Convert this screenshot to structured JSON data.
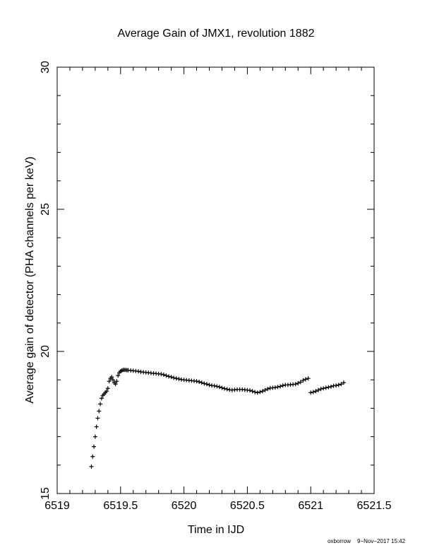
{
  "chart_data": {
    "type": "scatter",
    "title": "Average Gain of JMX1, revolution 1882",
    "xlabel": "Time in IJD",
    "ylabel": "Average gain of detector (PHA channels per keV)",
    "xlim": [
      6519,
      6521.5
    ],
    "ylim": [
      15,
      30
    ],
    "xticks": [
      6519,
      6519.5,
      6520,
      6520.5,
      6521,
      6521.5
    ],
    "xtick_labels": [
      "6519",
      "6519.5",
      "6520",
      "6520.5",
      "6521",
      "6521.5"
    ],
    "yticks": [
      15,
      20,
      25,
      30
    ],
    "ytick_labels": [
      "15",
      "20",
      "25",
      "30"
    ],
    "marker": "+",
    "grid": false,
    "series": [
      {
        "x": [
          6519.27,
          6519.28,
          6519.29,
          6519.3,
          6519.31,
          6519.32,
          6519.33,
          6519.34,
          6519.35,
          6519.36,
          6519.37,
          6519.38,
          6519.39,
          6519.4,
          6519.41,
          6519.42,
          6519.43,
          6519.44,
          6519.45,
          6519.46,
          6519.47,
          6519.48,
          6519.49,
          6519.5,
          6519.51,
          6519.52,
          6519.53,
          6519.54,
          6519.55,
          6519.56,
          6519.58,
          6519.6,
          6519.62,
          6519.64,
          6519.66,
          6519.68,
          6519.7,
          6519.72,
          6519.74,
          6519.76,
          6519.78,
          6519.8,
          6519.82,
          6519.84,
          6519.86,
          6519.88,
          6519.9,
          6519.92,
          6519.94,
          6519.96,
          6519.98,
          6520.0,
          6520.02,
          6520.04,
          6520.06,
          6520.08,
          6520.1,
          6520.12,
          6520.14,
          6520.16,
          6520.18,
          6520.2,
          6520.22,
          6520.24,
          6520.26,
          6520.28,
          6520.3,
          6520.32,
          6520.34,
          6520.36,
          6520.38,
          6520.4,
          6520.42,
          6520.44,
          6520.46,
          6520.48,
          6520.5,
          6520.52,
          6520.54,
          6520.56,
          6520.58,
          6520.6,
          6520.62,
          6520.64,
          6520.66,
          6520.68,
          6520.7,
          6520.72,
          6520.74,
          6520.76,
          6520.78,
          6520.8,
          6520.82,
          6520.84,
          6520.86,
          6520.88,
          6520.9,
          6520.92,
          6520.94,
          6520.96,
          6520.98,
          6521.0,
          6521.02,
          6521.04,
          6521.06,
          6521.08,
          6521.1,
          6521.12,
          6521.14,
          6521.16,
          6521.18,
          6521.2,
          6521.22,
          6521.24,
          6521.26
        ],
        "y": [
          15.95,
          16.3,
          16.65,
          17.0,
          17.35,
          17.65,
          17.9,
          18.15,
          18.35,
          18.45,
          18.5,
          18.55,
          18.6,
          18.7,
          18.95,
          19.05,
          19.1,
          19.0,
          18.9,
          18.85,
          18.95,
          19.15,
          19.25,
          19.3,
          19.33,
          19.35,
          19.35,
          19.35,
          19.34,
          19.34,
          19.33,
          19.32,
          19.31,
          19.3,
          19.28,
          19.27,
          19.26,
          19.25,
          19.24,
          19.23,
          19.22,
          19.21,
          19.2,
          19.18,
          19.15,
          19.12,
          19.1,
          19.07,
          19.05,
          19.03,
          19.01,
          19.0,
          18.99,
          18.98,
          18.97,
          18.96,
          18.95,
          18.93,
          18.9,
          18.87,
          18.85,
          18.82,
          18.8,
          18.79,
          18.77,
          18.75,
          18.72,
          18.69,
          18.67,
          18.65,
          18.64,
          18.65,
          18.66,
          18.66,
          18.66,
          18.65,
          18.64,
          18.63,
          18.6,
          18.57,
          18.55,
          18.57,
          18.6,
          18.64,
          18.68,
          18.71,
          18.72,
          18.73,
          18.75,
          18.77,
          18.8,
          18.82,
          18.82,
          18.83,
          18.84,
          18.85,
          18.88,
          18.92,
          18.98,
          19.02,
          19.05,
          18.55,
          18.57,
          18.6,
          18.64,
          18.68,
          18.7,
          18.72,
          18.74,
          18.76,
          18.79,
          18.8,
          18.82,
          18.85,
          18.9
        ]
      }
    ]
  },
  "footer": {
    "author": "oxborrow",
    "date": "9−Nov−2017 15:42"
  }
}
